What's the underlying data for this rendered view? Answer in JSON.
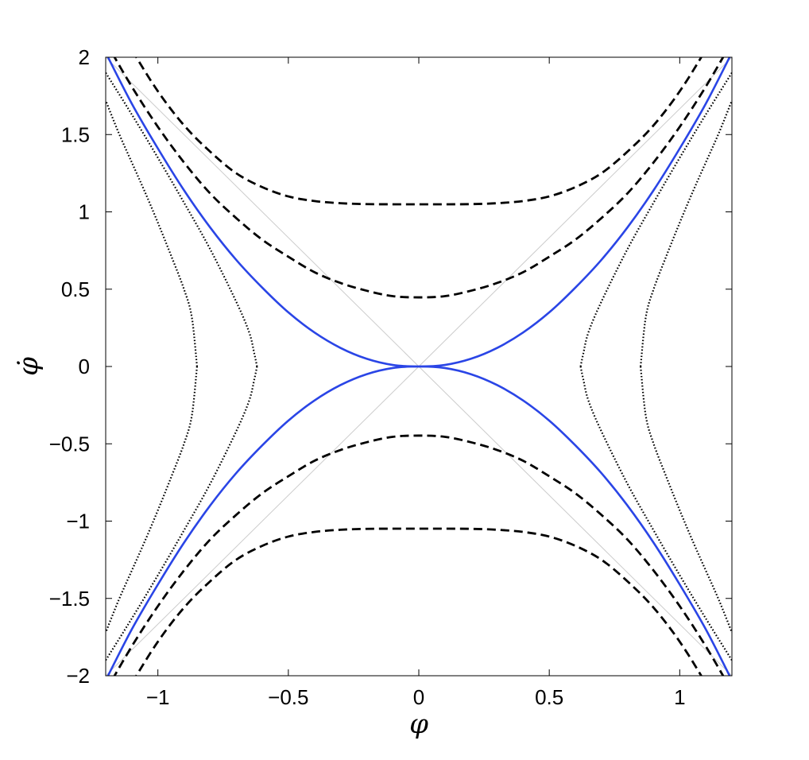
{
  "chart_data": {
    "type": "line",
    "title": "",
    "xlabel": "φ",
    "ylabel": "φ̇",
    "xlim": [
      -1.2,
      1.2
    ],
    "ylim": [
      -2,
      2
    ],
    "grid": false,
    "legend": "none",
    "x_ticks": [
      {
        "value": -1,
        "label": "−1"
      },
      {
        "value": -0.5,
        "label": "−0.5"
      },
      {
        "value": 0,
        "label": "0"
      },
      {
        "value": 0.5,
        "label": "0.5"
      },
      {
        "value": 1,
        "label": "1"
      }
    ],
    "y_ticks": [
      {
        "value": 2,
        "label": "2"
      },
      {
        "value": 1.5,
        "label": "1.5"
      },
      {
        "value": 1,
        "label": "1"
      },
      {
        "value": 0.5,
        "label": "0.5"
      },
      {
        "value": 0,
        "label": "0"
      },
      {
        "value": -0.5,
        "label": "−0.5"
      },
      {
        "value": -1,
        "label": "−1"
      },
      {
        "value": -1.5,
        "label": "−1.5"
      },
      {
        "value": -2,
        "label": "−2"
      }
    ],
    "series": [
      {
        "style": "guide",
        "color": "#cccccc",
        "x": [
          -1.2,
          1.2
        ],
        "y": [
          -2.0,
          2.0
        ]
      },
      {
        "style": "guide",
        "color": "#cccccc",
        "x": [
          -1.2,
          1.2
        ],
        "y": [
          2.0,
          -2.0
        ]
      },
      {
        "style": "dotted",
        "color": "#000000",
        "x": [
          0.85,
          0.87,
          0.9,
          0.95,
          1.0,
          1.05,
          1.1,
          1.15,
          1.2
        ],
        "y": [
          0.0,
          0.32,
          0.5,
          0.72,
          0.93,
          1.13,
          1.32,
          1.51,
          1.72
        ]
      },
      {
        "style": "dotted",
        "color": "#000000",
        "x": [
          0.85,
          0.87,
          0.9,
          0.95,
          1.0,
          1.05,
          1.1,
          1.15,
          1.2
        ],
        "y": [
          0.0,
          -0.32,
          -0.5,
          -0.72,
          -0.93,
          -1.13,
          -1.32,
          -1.51,
          -1.72
        ]
      },
      {
        "style": "dotted",
        "color": "#000000",
        "x": [
          -0.85,
          -0.87,
          -0.9,
          -0.95,
          -1.0,
          -1.05,
          -1.1,
          -1.15,
          -1.2
        ],
        "y": [
          0.0,
          0.32,
          0.5,
          0.72,
          0.93,
          1.13,
          1.32,
          1.51,
          1.72
        ]
      },
      {
        "style": "dotted",
        "color": "#000000",
        "x": [
          -0.85,
          -0.87,
          -0.9,
          -0.95,
          -1.0,
          -1.05,
          -1.1,
          -1.15,
          -1.2
        ],
        "y": [
          0.0,
          -0.32,
          -0.5,
          -0.72,
          -0.93,
          -1.13,
          -1.32,
          -1.51,
          -1.72
        ]
      },
      {
        "style": "dotted",
        "color": "#000000",
        "x": [
          0.62,
          0.63,
          0.65,
          0.7,
          0.8,
          0.9,
          1.0,
          1.1,
          1.2
        ],
        "y": [
          0.0,
          0.08,
          0.22,
          0.42,
          0.76,
          1.06,
          1.35,
          1.63,
          1.9
        ]
      },
      {
        "style": "dotted",
        "color": "#000000",
        "x": [
          0.62,
          0.63,
          0.65,
          0.7,
          0.8,
          0.9,
          1.0,
          1.1,
          1.2
        ],
        "y": [
          0.0,
          -0.08,
          -0.22,
          -0.42,
          -0.76,
          -1.06,
          -1.35,
          -1.63,
          -1.9
        ]
      },
      {
        "style": "dotted",
        "color": "#000000",
        "x": [
          -0.62,
          -0.63,
          -0.65,
          -0.7,
          -0.8,
          -0.9,
          -1.0,
          -1.1,
          -1.2
        ],
        "y": [
          0.0,
          0.08,
          0.22,
          0.42,
          0.76,
          1.06,
          1.35,
          1.63,
          1.9
        ]
      },
      {
        "style": "dotted",
        "color": "#000000",
        "x": [
          -0.62,
          -0.63,
          -0.65,
          -0.7,
          -0.8,
          -0.9,
          -1.0,
          -1.1,
          -1.2
        ],
        "y": [
          0.0,
          -0.08,
          -0.22,
          -0.42,
          -0.76,
          -1.06,
          -1.35,
          -1.63,
          -1.9
        ]
      },
      {
        "style": "solid",
        "color": "#2a45e6",
        "x": [
          -1.2,
          -1.1,
          -1.0,
          -0.9,
          -0.8,
          -0.7,
          -0.6,
          -0.5,
          -0.4,
          -0.3,
          -0.2,
          -0.1,
          0.0,
          0.1,
          0.2,
          0.3,
          0.4,
          0.5,
          0.6,
          0.7,
          0.8,
          0.9,
          1.0,
          1.1,
          1.2
        ],
        "y": [
          2.03,
          1.7,
          1.41,
          1.14,
          0.9,
          0.69,
          0.51,
          0.35,
          0.22,
          0.12,
          0.05,
          0.01,
          0.0,
          0.01,
          0.05,
          0.12,
          0.22,
          0.35,
          0.51,
          0.69,
          0.9,
          1.14,
          1.41,
          1.7,
          2.03
        ]
      },
      {
        "style": "solid",
        "color": "#2a45e6",
        "x": [
          -1.2,
          -1.1,
          -1.0,
          -0.9,
          -0.8,
          -0.7,
          -0.6,
          -0.5,
          -0.4,
          -0.3,
          -0.2,
          -0.1,
          0.0,
          0.1,
          0.2,
          0.3,
          0.4,
          0.5,
          0.6,
          0.7,
          0.8,
          0.9,
          1.0,
          1.1,
          1.2
        ],
        "y": [
          -2.03,
          -1.7,
          -1.41,
          -1.14,
          -0.9,
          -0.69,
          -0.51,
          -0.35,
          -0.22,
          -0.12,
          -0.05,
          -0.01,
          0.0,
          -0.01,
          -0.05,
          -0.12,
          -0.22,
          -0.35,
          -0.51,
          -0.69,
          -0.9,
          -1.14,
          -1.41,
          -1.7,
          -2.03
        ]
      },
      {
        "style": "dashed",
        "color": "#000000",
        "x": [
          -1.2,
          -1.1,
          -1.0,
          -0.9,
          -0.8,
          -0.7,
          -0.6,
          -0.5,
          -0.4,
          -0.3,
          -0.2,
          -0.1,
          0.0,
          0.1,
          0.2,
          0.3,
          0.4,
          0.5,
          0.6,
          0.7,
          0.8,
          0.9,
          1.0,
          1.1,
          1.2
        ],
        "y": [
          2.1,
          1.81,
          1.55,
          1.32,
          1.12,
          0.96,
          0.82,
          0.71,
          0.61,
          0.54,
          0.49,
          0.455,
          0.447,
          0.455,
          0.49,
          0.54,
          0.61,
          0.71,
          0.82,
          0.96,
          1.12,
          1.32,
          1.55,
          1.81,
          2.1
        ]
      },
      {
        "style": "dashed",
        "color": "#000000",
        "x": [
          -1.2,
          -1.1,
          -1.0,
          -0.9,
          -0.8,
          -0.7,
          -0.6,
          -0.5,
          -0.4,
          -0.3,
          -0.2,
          -0.1,
          0.0,
          0.1,
          0.2,
          0.3,
          0.4,
          0.5,
          0.6,
          0.7,
          0.8,
          0.9,
          1.0,
          1.1,
          1.2
        ],
        "y": [
          -2.1,
          -1.81,
          -1.55,
          -1.32,
          -1.12,
          -0.96,
          -0.82,
          -0.71,
          -0.61,
          -0.54,
          -0.49,
          -0.455,
          -0.447,
          -0.455,
          -0.49,
          -0.54,
          -0.61,
          -0.71,
          -0.82,
          -0.96,
          -1.12,
          -1.32,
          -1.55,
          -1.81,
          -2.1
        ]
      },
      {
        "style": "dashed",
        "color": "#000000",
        "x": [
          -1.2,
          -1.1,
          -1.0,
          -0.9,
          -0.8,
          -0.7,
          -0.6,
          -0.5,
          -0.4,
          -0.3,
          -0.2,
          -0.1,
          0.0,
          0.1,
          0.2,
          0.3,
          0.4,
          0.5,
          0.6,
          0.7,
          0.8,
          0.9,
          1.0,
          1.1,
          1.2
        ],
        "y": [
          2.35,
          2.05,
          1.78,
          1.56,
          1.39,
          1.25,
          1.16,
          1.1,
          1.07,
          1.056,
          1.05,
          1.049,
          1.049,
          1.049,
          1.05,
          1.056,
          1.07,
          1.1,
          1.16,
          1.25,
          1.39,
          1.56,
          1.78,
          2.05,
          2.35
        ]
      },
      {
        "style": "dashed",
        "color": "#000000",
        "x": [
          -1.2,
          -1.1,
          -1.0,
          -0.9,
          -0.8,
          -0.7,
          -0.6,
          -0.5,
          -0.4,
          -0.3,
          -0.2,
          -0.1,
          0.0,
          0.1,
          0.2,
          0.3,
          0.4,
          0.5,
          0.6,
          0.7,
          0.8,
          0.9,
          1.0,
          1.1,
          1.2
        ],
        "y": [
          -2.35,
          -2.05,
          -1.78,
          -1.56,
          -1.39,
          -1.25,
          -1.16,
          -1.1,
          -1.07,
          -1.056,
          -1.05,
          -1.049,
          -1.049,
          -1.049,
          -1.05,
          -1.056,
          -1.07,
          -1.1,
          -1.16,
          -1.25,
          -1.39,
          -1.56,
          -1.78,
          -2.05,
          -2.35
        ]
      }
    ]
  }
}
